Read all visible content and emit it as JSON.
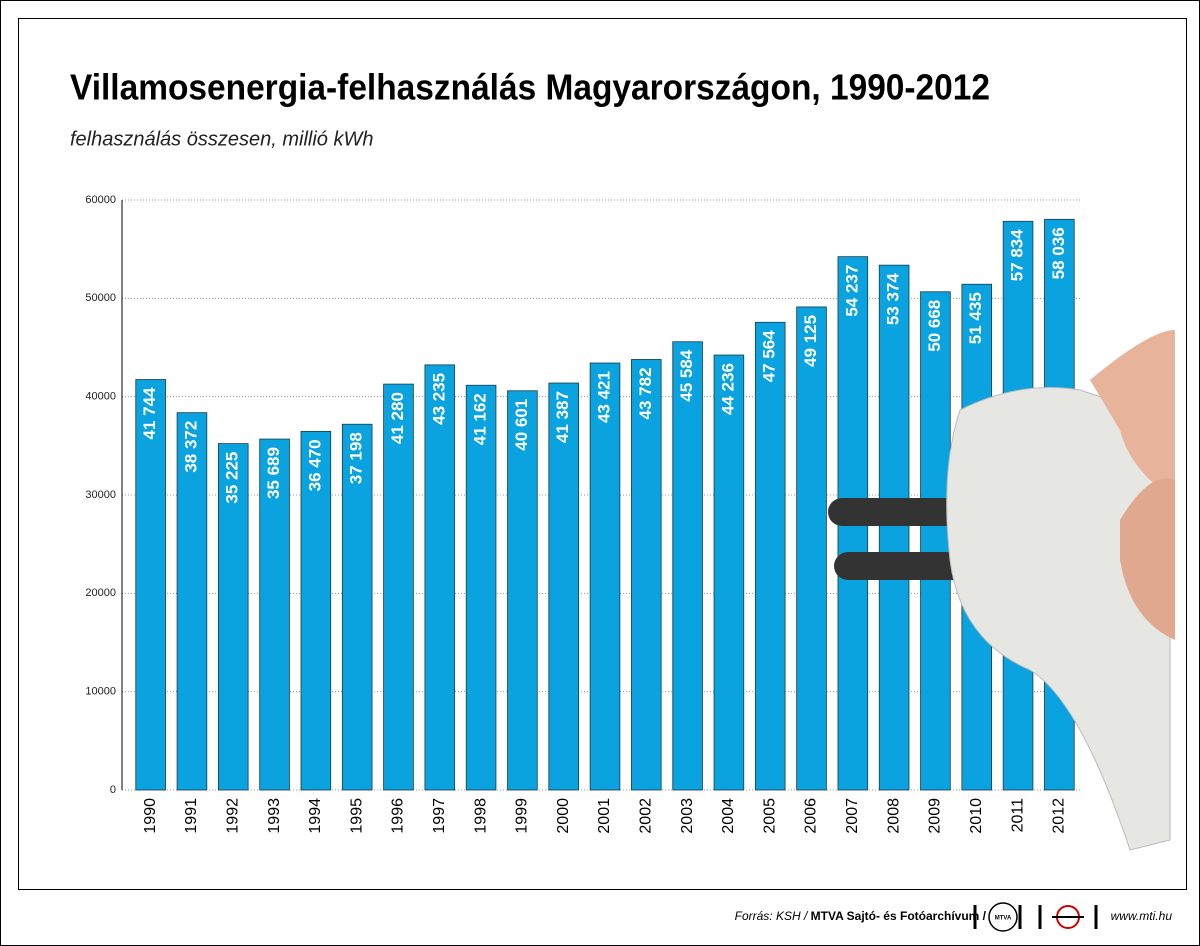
{
  "chart_data": {
    "type": "bar",
    "title": "Villamosenergia-felhasználás Magyarországon, 1990-2012",
    "subtitle": "felhasználás összesen, millió kWh",
    "categories": [
      "1990",
      "1991",
      "1992",
      "1993",
      "1994",
      "1995",
      "1996",
      "1997",
      "1998",
      "1999",
      "2000",
      "2001",
      "2002",
      "2003",
      "2004",
      "2005",
      "2006",
      "2007",
      "2008",
      "2009",
      "2010",
      "2011",
      "2012"
    ],
    "values": [
      41744,
      38372,
      35225,
      35689,
      36470,
      37198,
      41280,
      43235,
      41162,
      40601,
      41387,
      43421,
      43782,
      45584,
      44236,
      47564,
      49125,
      54237,
      53374,
      50668,
      51435,
      57834,
      58036
    ],
    "value_labels": [
      "41 744",
      "38 372",
      "35 225",
      "35 689",
      "36 470",
      "37 198",
      "41 280",
      "43 235",
      "41 162",
      "40 601",
      "41 387",
      "43 421",
      "43 782",
      "45 584",
      "44 236",
      "47 564",
      "49 125",
      "54 237",
      "53 374",
      "50 668",
      "51 435",
      "57 834",
      "58 036"
    ],
    "color": "#0aa2df",
    "ylim": [
      0,
      60000
    ],
    "yticks": [
      0,
      10000,
      20000,
      30000,
      40000,
      50000,
      60000
    ],
    "grid": true,
    "source_prefix": "Forrás: KSH /",
    "source_credit": "MTVA Sajtó- és Fotóarchívum / MTI",
    "logo_text": "MTVA",
    "website": "www.mti.hu"
  }
}
